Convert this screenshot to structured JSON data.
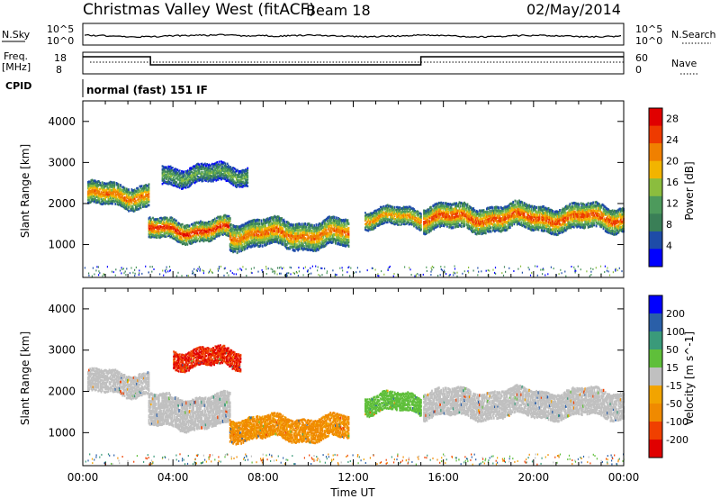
{
  "header": {
    "title": "Christmas Valley West (fitACF)",
    "beam": "Beam 18",
    "date": "02/May/2014"
  },
  "strips": {
    "nsky_label": "N.Sky",
    "nsearch_label": "N.Search",
    "nsky_ticks": [
      "10^5",
      "10^0"
    ],
    "nsearch_ticks": [
      "10^5",
      "10^0"
    ],
    "freq_label_1": "Freq.",
    "freq_label_2": "[MHz]",
    "freq_ticks": [
      "18",
      "8"
    ],
    "nave_label": "Nave",
    "nave_ticks": [
      "60",
      "0"
    ],
    "cpid_label": "CPID",
    "cpid_value": "normal (fast) 151 IF"
  },
  "colors": {
    "power": [
      "#0000ff",
      "#1e4ca8",
      "#3a7f57",
      "#4d9a5c",
      "#8bbd3e",
      "#f2b400",
      "#f08000",
      "#ee3a00",
      "#e00000"
    ],
    "velocity": [
      "#e00000",
      "#f04000",
      "#f08a00",
      "#f2a400",
      "#c0c0c0",
      "#5fbf3a",
      "#3a9a7a",
      "#2a5fa8",
      "#0000ff"
    ]
  },
  "chart_data": [
    {
      "type": "heatmap",
      "panel": "power",
      "ylabel": "Slant Range [km]",
      "xlabel": "Time UT",
      "x_ticks": [
        "00:00",
        "04:00",
        "08:00",
        "12:00",
        "16:00",
        "20:00",
        "00:00"
      ],
      "xlim_hours": [
        0,
        24
      ],
      "y_ticks": [
        1000,
        2000,
        3000,
        4000
      ],
      "ylim": [
        200,
        4500
      ],
      "colorbar": {
        "label": "Power [dB]",
        "ticks": [
          "28",
          "24",
          "20",
          "16",
          "12",
          "8",
          "4"
        ],
        "range": [
          0,
          30
        ]
      },
      "bands": [
        {
          "t0": 0.2,
          "t1": 2.9,
          "center": 2200,
          "width": 500,
          "peak": 24
        },
        {
          "t0": 2.9,
          "t1": 6.5,
          "center": 1350,
          "width": 450,
          "peak": 28
        },
        {
          "t0": 3.5,
          "t1": 7.3,
          "center": 2700,
          "width": 400,
          "peak": 14
        },
        {
          "t0": 6.5,
          "t1": 11.8,
          "center": 1250,
          "width": 600,
          "peak": 24
        },
        {
          "t0": 12.5,
          "t1": 15.0,
          "center": 1650,
          "width": 400,
          "peak": 22
        },
        {
          "t0": 15.1,
          "t1": 24.0,
          "center": 1650,
          "width": 550,
          "peak": 26
        }
      ]
    },
    {
      "type": "heatmap",
      "panel": "velocity",
      "ylabel": "Slant Range [km]",
      "xlabel": "Time UT",
      "x_ticks": [
        "00:00",
        "04:00",
        "08:00",
        "12:00",
        "16:00",
        "20:00",
        "00:00"
      ],
      "xlim_hours": [
        0,
        24
      ],
      "y_ticks": [
        1000,
        2000,
        3000,
        4000
      ],
      "ylim": [
        200,
        4500
      ],
      "colorbar": {
        "label": "Velocity [m s^-1]",
        "ticks": [
          "200",
          "100",
          "50",
          "15",
          "-15",
          "-50",
          "-100",
          "-200"
        ],
        "range": [
          -250,
          250
        ]
      },
      "bands": [
        {
          "t0": 0.2,
          "t1": 2.9,
          "center": 2200,
          "width": 500,
          "velocity": 0
        },
        {
          "t0": 2.9,
          "t1": 6.5,
          "center": 1500,
          "width": 700,
          "velocity": 0
        },
        {
          "t0": 4.0,
          "t1": 7.0,
          "center": 2800,
          "width": 400,
          "velocity": -200
        },
        {
          "t0": 6.5,
          "t1": 11.8,
          "center": 1100,
          "width": 500,
          "velocity": -60
        },
        {
          "t0": 12.5,
          "t1": 15.0,
          "center": 1700,
          "width": 400,
          "velocity": 30
        },
        {
          "t0": 15.1,
          "t1": 24.0,
          "center": 1700,
          "width": 600,
          "velocity": 0
        }
      ]
    }
  ]
}
